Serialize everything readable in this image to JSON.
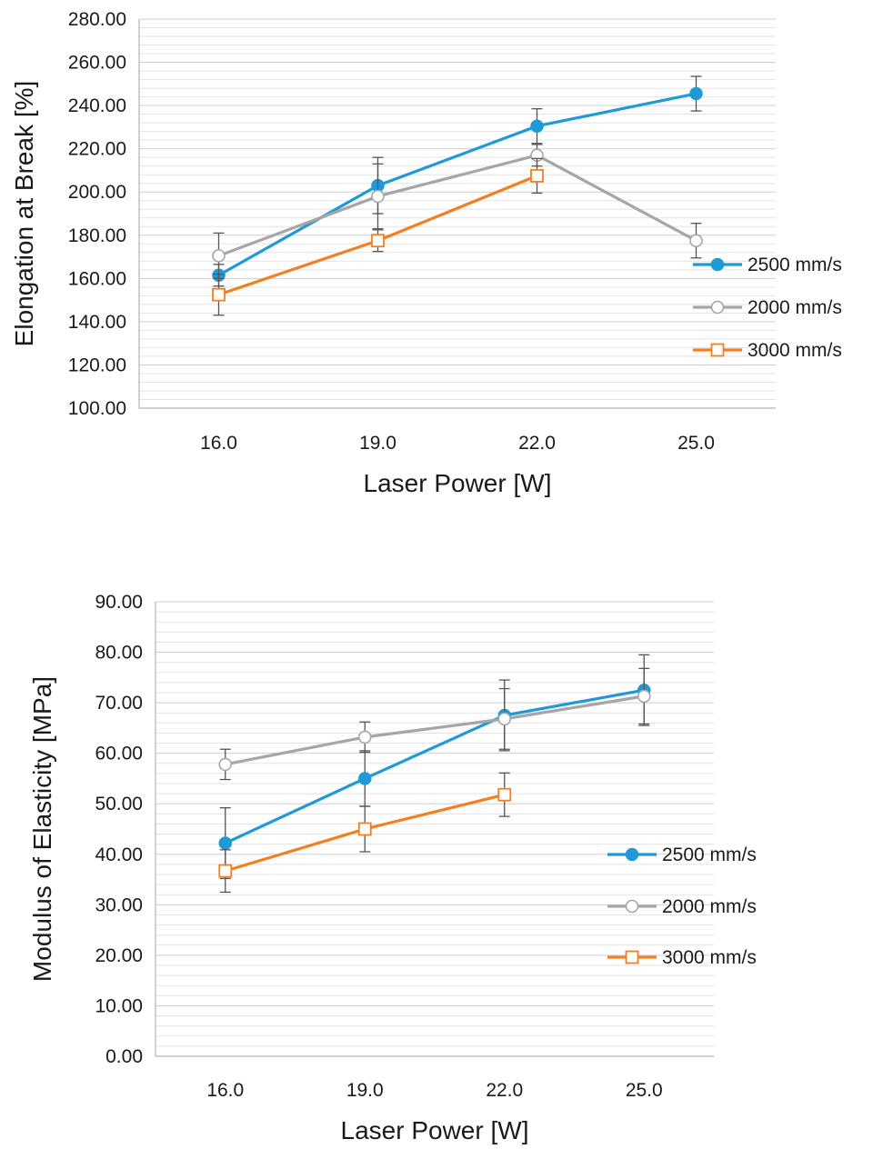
{
  "chart_data": [
    {
      "type": "line",
      "title": "",
      "xlabel": "Laser Power [W]",
      "ylabel": "Elongation at Break [%]",
      "categories": [
        "16.0",
        "19.0",
        "22.0",
        "25.0"
      ],
      "ylim": [
        100,
        280
      ],
      "ytick_step": 20,
      "yticks": [
        "100.00",
        "120.00",
        "140.00",
        "160.00",
        "180.00",
        "200.00",
        "220.00",
        "240.00",
        "260.00",
        "280.00"
      ],
      "minor_grid_step": 4,
      "grid": true,
      "legend_position": "right",
      "series": [
        {
          "name": "2500 mm/s",
          "color": "#1f9ad6",
          "marker": "filled-circle",
          "values": [
            161.5,
            203.0,
            230.5,
            245.5
          ],
          "errors": [
            5,
            13,
            8,
            8
          ]
        },
        {
          "name": "2000 mm/s",
          "color": "#a6a6a6",
          "marker": "open-circle",
          "values": [
            170.5,
            198.0,
            217.0,
            177.5
          ],
          "errors": [
            10.5,
            15,
            5,
            8
          ]
        },
        {
          "name": "3000 mm/s",
          "color": "#f47f20",
          "marker": "open-square",
          "values": [
            152.5,
            177.5,
            207.5,
            null
          ],
          "errors": [
            9.5,
            5,
            8,
            null
          ]
        }
      ]
    },
    {
      "type": "line",
      "title": "",
      "xlabel": "Laser Power [W]",
      "ylabel": "Modulus of Elasticity [MPa]",
      "categories": [
        "16.0",
        "19.0",
        "22.0",
        "25.0"
      ],
      "ylim": [
        0,
        90
      ],
      "ytick_step": 10,
      "yticks": [
        "0.00",
        "10.00",
        "20.00",
        "30.00",
        "40.00",
        "50.00",
        "60.00",
        "70.00",
        "80.00",
        "90.00"
      ],
      "minor_grid_step": 2,
      "grid": true,
      "legend_position": "right",
      "series": [
        {
          "name": "2500 mm/s",
          "color": "#1f9ad6",
          "marker": "filled-circle",
          "values": [
            42.2,
            55.0,
            67.5,
            72.5
          ],
          "errors": [
            7,
            5.5,
            7,
            7
          ]
        },
        {
          "name": "2000 mm/s",
          "color": "#a6a6a6",
          "marker": "open-circle",
          "values": [
            57.8,
            63.2,
            66.8,
            71.3
          ],
          "errors": [
            3,
            3,
            6,
            5.5
          ]
        },
        {
          "name": "3000 mm/s",
          "color": "#f47f20",
          "marker": "open-square",
          "values": [
            36.7,
            45.0,
            51.8,
            null
          ],
          "errors": [
            4.2,
            4.5,
            4.3,
            null
          ]
        }
      ]
    }
  ]
}
